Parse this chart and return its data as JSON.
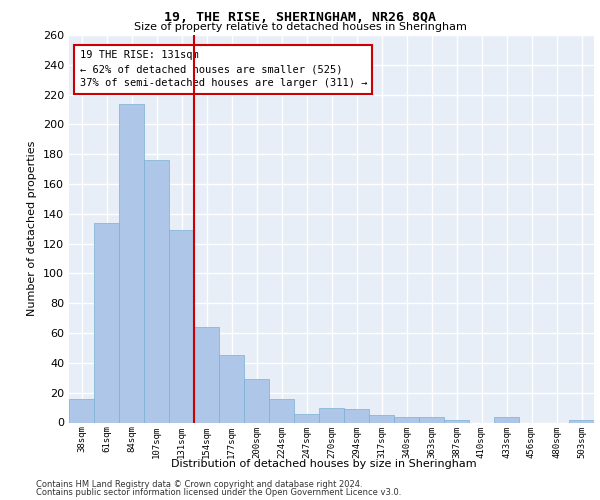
{
  "title": "19, THE RISE, SHERINGHAM, NR26 8QA",
  "subtitle": "Size of property relative to detached houses in Sheringham",
  "xlabel": "Distribution of detached houses by size in Sheringham",
  "ylabel": "Number of detached properties",
  "bar_color": "#aec6e8",
  "bar_edge_color": "#7aafd4",
  "background_color": "#e8eef7",
  "grid_color": "#ffffff",
  "vline_color": "#cc0000",
  "annotation_text": "19 THE RISE: 131sqm\n← 62% of detached houses are smaller (525)\n37% of semi-detached houses are larger (311) →",
  "annotation_box_color": "#ffffff",
  "annotation_box_edge": "#cc0000",
  "categories": [
    "38sqm",
    "61sqm",
    "84sqm",
    "107sqm",
    "131sqm",
    "154sqm",
    "177sqm",
    "200sqm",
    "224sqm",
    "247sqm",
    "270sqm",
    "294sqm",
    "317sqm",
    "340sqm",
    "363sqm",
    "387sqm",
    "410sqm",
    "433sqm",
    "456sqm",
    "480sqm",
    "503sqm"
  ],
  "values": [
    16,
    134,
    214,
    176,
    129,
    64,
    45,
    29,
    16,
    6,
    10,
    9,
    5,
    4,
    4,
    2,
    0,
    4,
    0,
    0,
    2
  ],
  "ylim": [
    0,
    260
  ],
  "yticks": [
    0,
    20,
    40,
    60,
    80,
    100,
    120,
    140,
    160,
    180,
    200,
    220,
    240,
    260
  ],
  "footer_line1": "Contains HM Land Registry data © Crown copyright and database right 2024.",
  "footer_line2": "Contains public sector information licensed under the Open Government Licence v3.0."
}
